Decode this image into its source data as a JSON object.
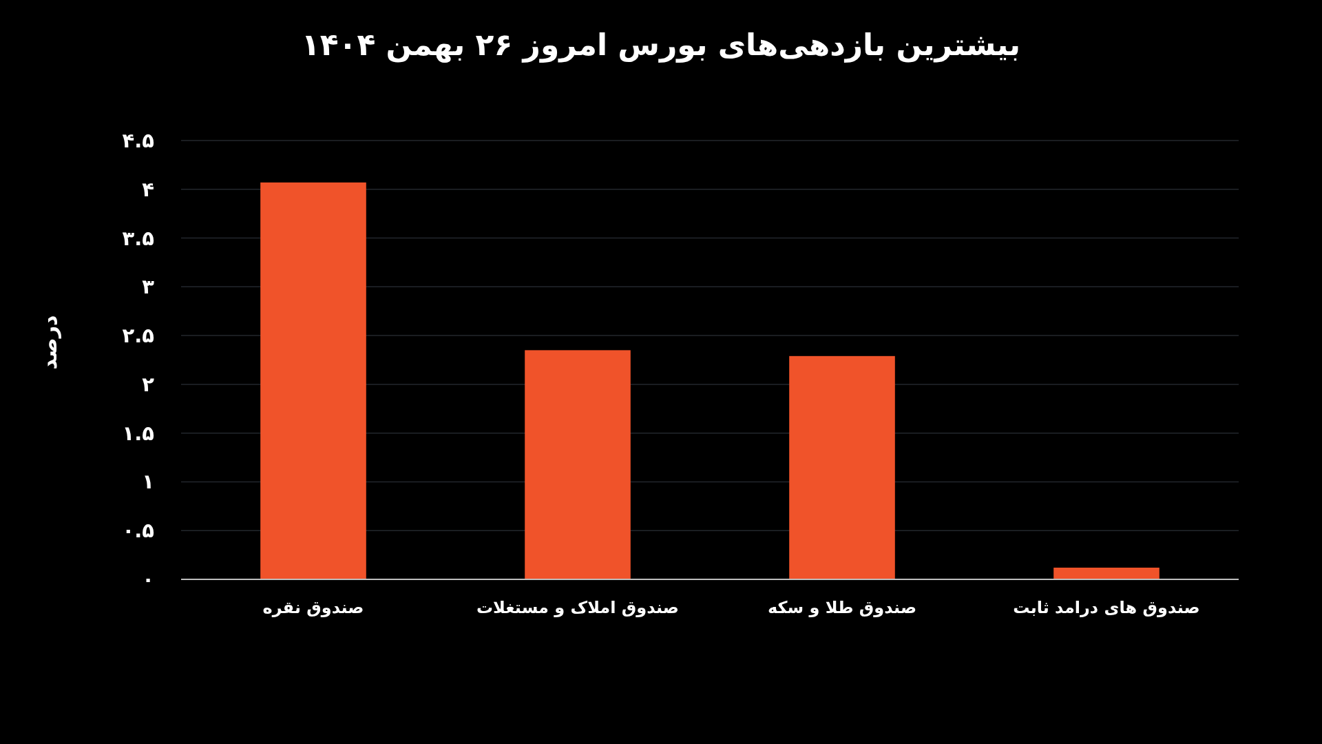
{
  "chart_data": {
    "type": "bar",
    "title": "بیشترین بازدهی‌های بورس امروز ۲۶ بهمن ۱۴۰۴",
    "ylabel": "درصد",
    "categories": [
      "صندوق نقره",
      "صندوق املاک و مستغلات",
      "صندوق طلا و سکه",
      "صندوق های درامد ثابت"
    ],
    "values": [
      4.07,
      2.35,
      2.29,
      0.12
    ],
    "color": "#f0532a",
    "ylim": [
      0,
      4.5
    ],
    "yticks": [
      {
        "value": 0,
        "label": "۰"
      },
      {
        "value": 0.5,
        "label": "۰.۵"
      },
      {
        "value": 1,
        "label": "۱"
      },
      {
        "value": 1.5,
        "label": "۱.۵"
      },
      {
        "value": 2,
        "label": "۲"
      },
      {
        "value": 2.5,
        "label": "۲.۵"
      },
      {
        "value": 3,
        "label": "۳"
      },
      {
        "value": 3.5,
        "label": "۳.۵"
      },
      {
        "value": 4,
        "label": "۴"
      },
      {
        "value": 4.5,
        "label": "۴.۵"
      }
    ],
    "grid": "y"
  }
}
